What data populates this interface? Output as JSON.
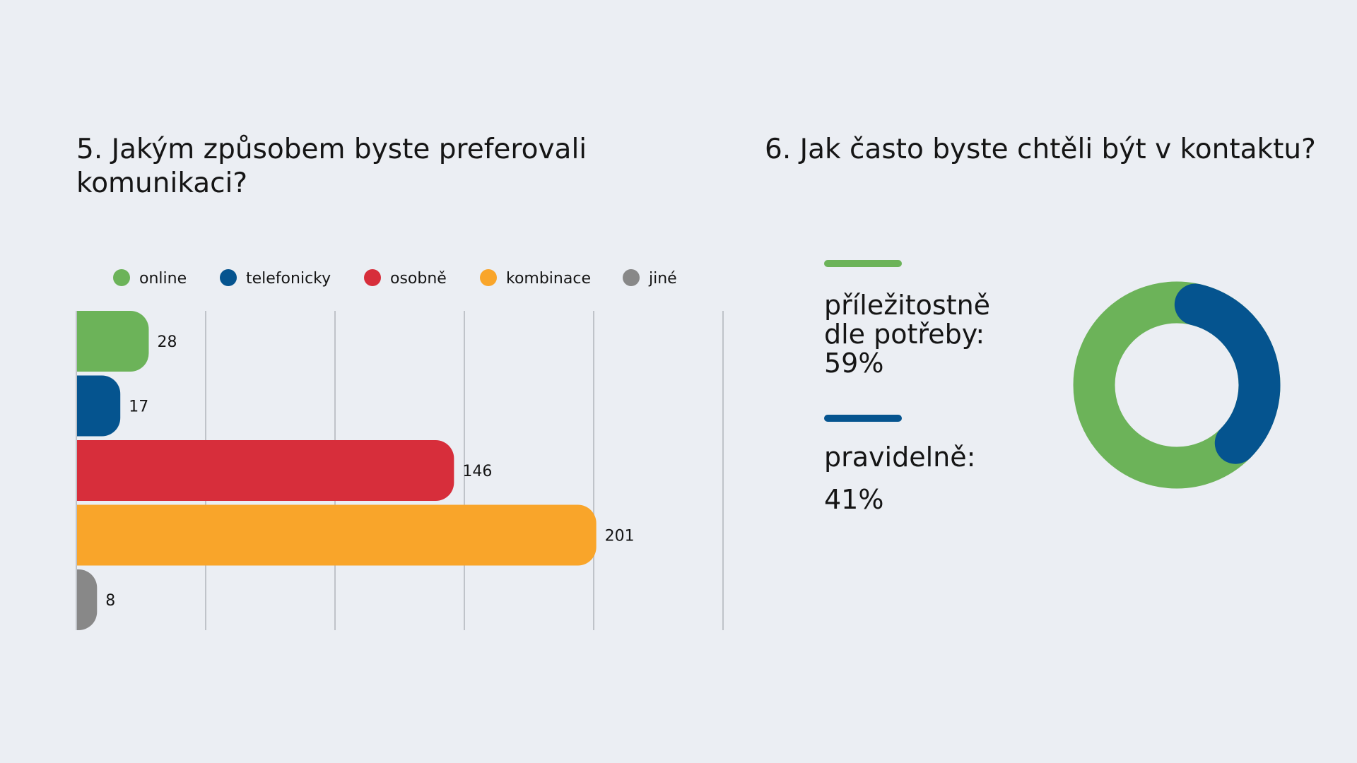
{
  "slide": {
    "q5_title": "5. Jakým způsobem byste preferovali komunikaci?",
    "q6_title": "6. Jak často byste chtěli být v kontaktu?"
  },
  "chart_data": [
    {
      "type": "bar",
      "orientation": "horizontal",
      "title": "5. Jakým způsobem byste preferovali komunikaci?",
      "categories": [
        "online",
        "telefonicky",
        "osobně",
        "kombinace",
        "jiné"
      ],
      "values": [
        28,
        17,
        146,
        201,
        8
      ],
      "colors": [
        "#6cb359",
        "#05548f",
        "#d72e3b",
        "#f9a52a",
        "#888888"
      ],
      "xlim": [
        0,
        250
      ],
      "grid": true,
      "legend": "top"
    },
    {
      "type": "pie",
      "style": "donut",
      "title": "6. Jak často byste chtěli být v kontaktu?",
      "slices": [
        {
          "label": "příležitostně\ndle potřeby:\n59%",
          "value": 59,
          "color": "#6cb359"
        },
        {
          "label": "pravidelně:\n41%",
          "value": 41,
          "color": "#05548f"
        }
      ]
    }
  ]
}
